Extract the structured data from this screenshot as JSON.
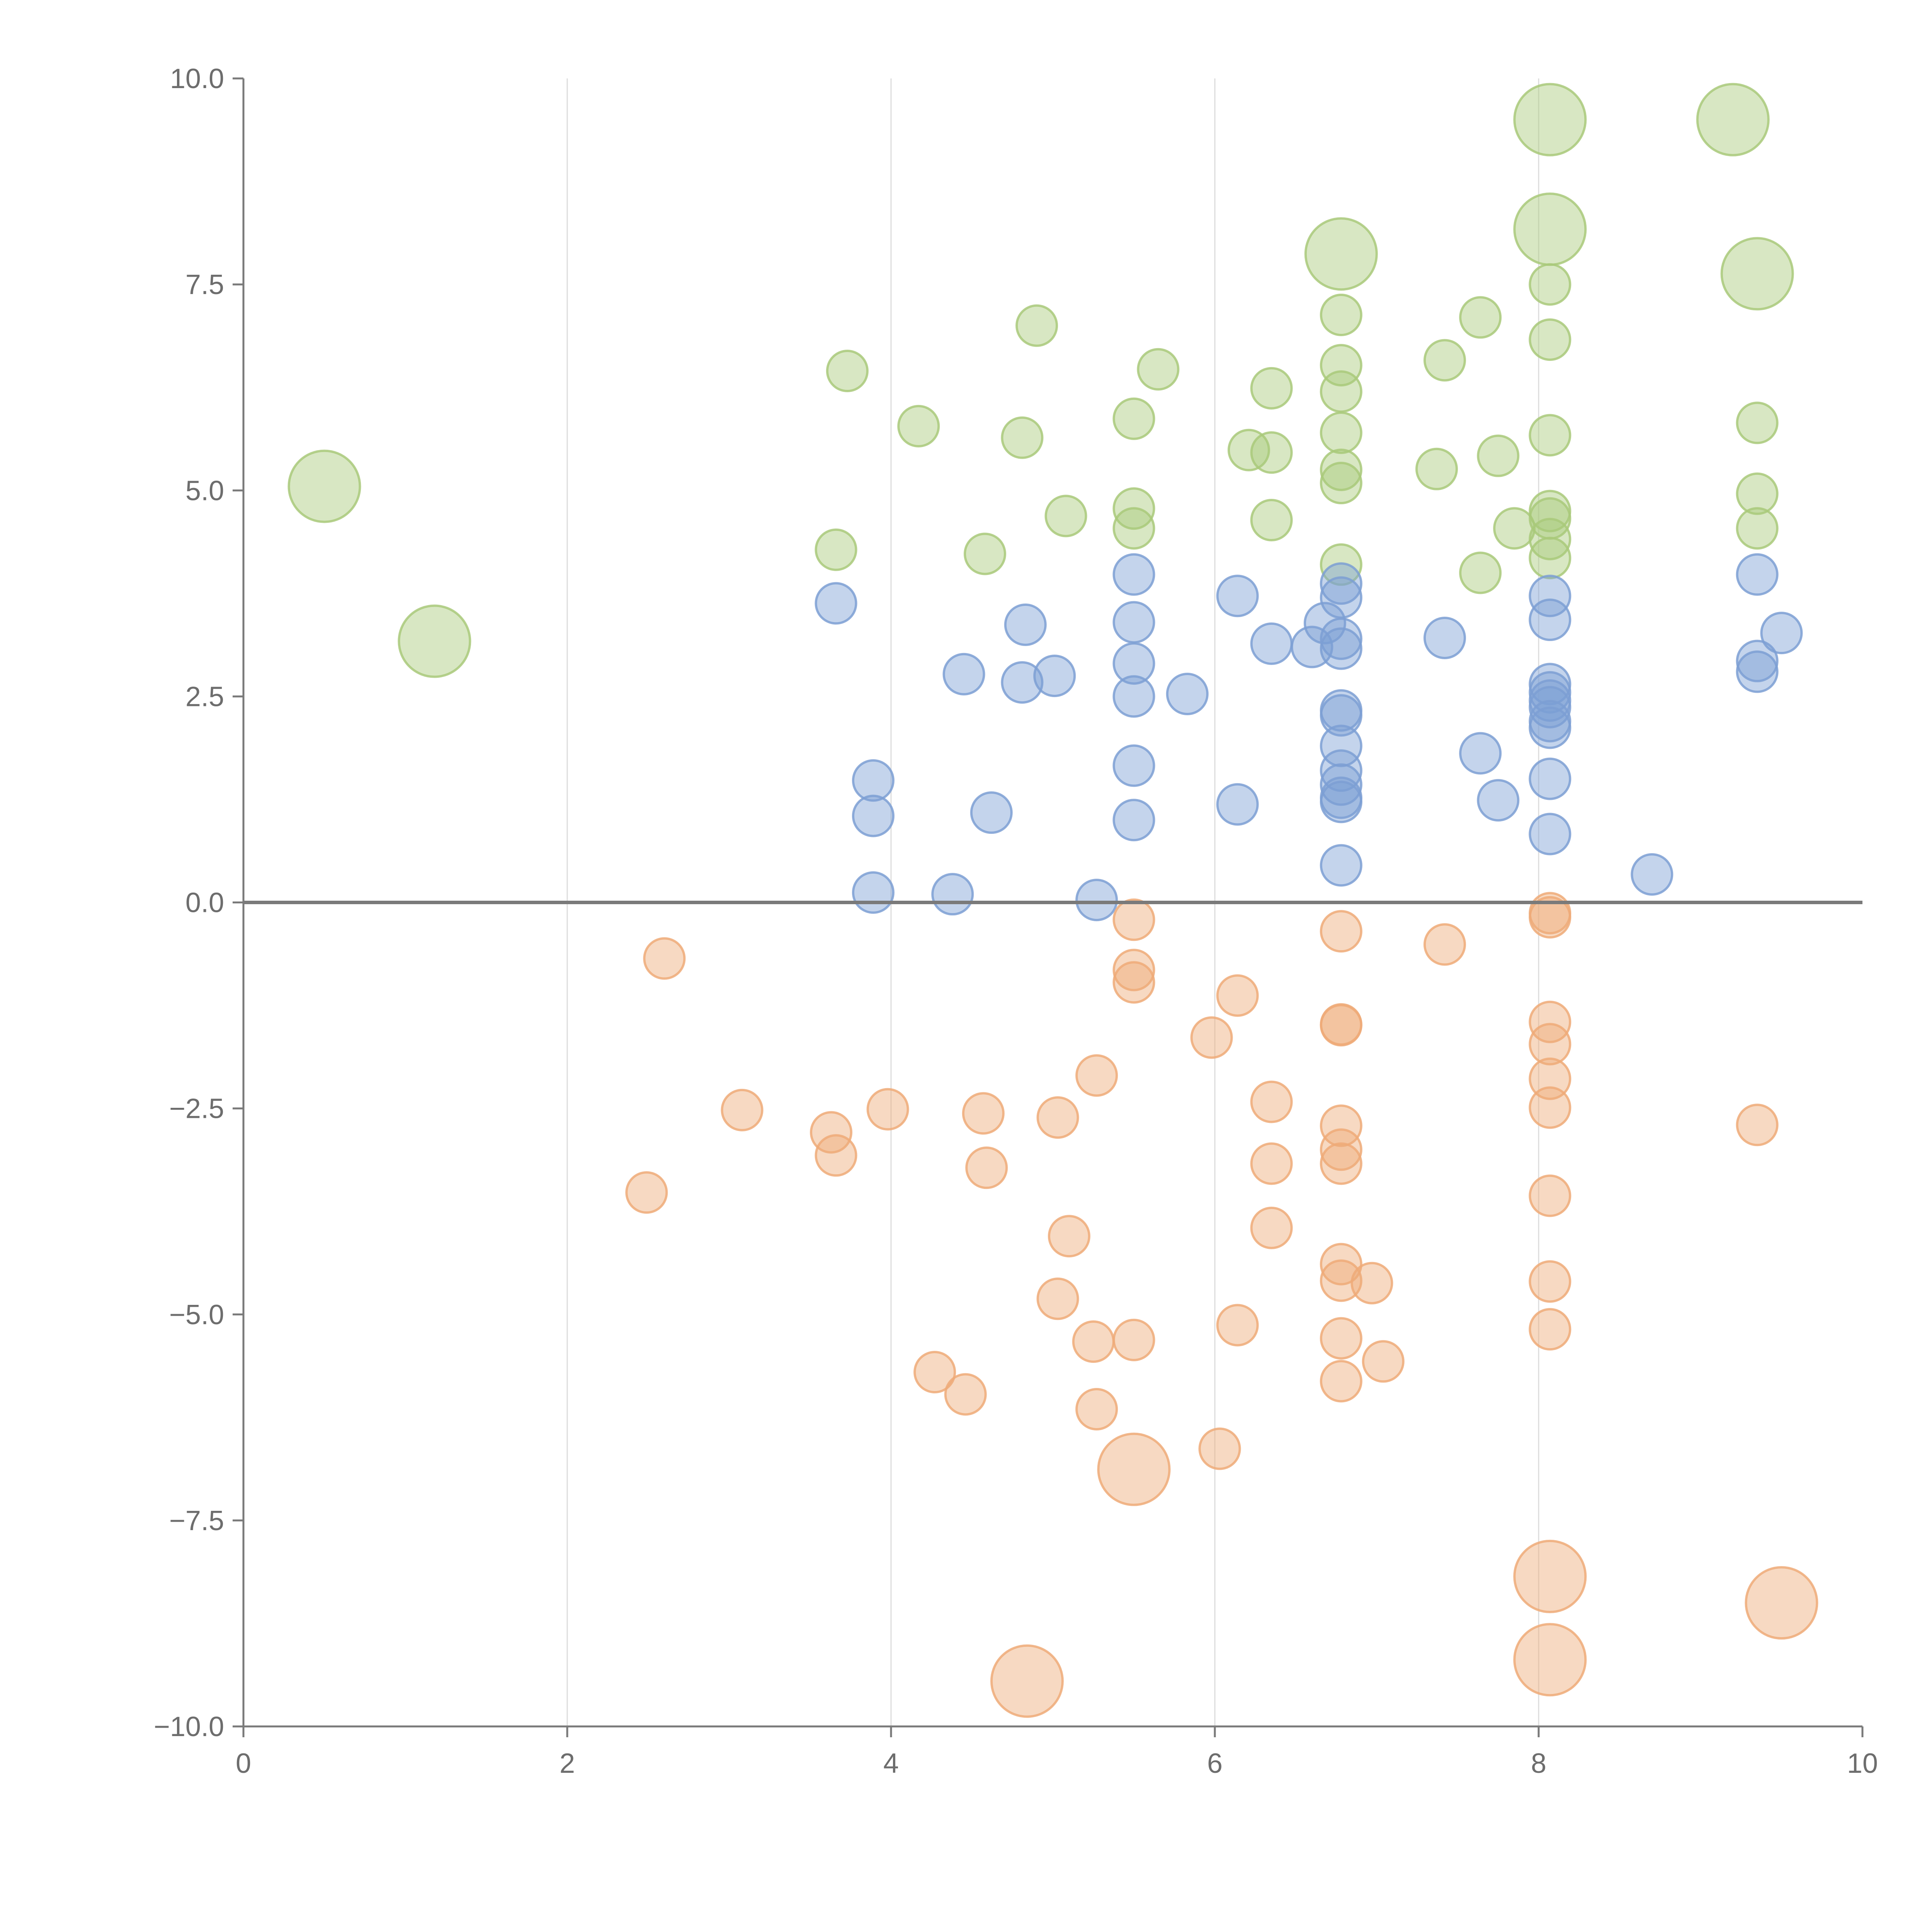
{
  "chart_data": {
    "type": "scatter",
    "title": "",
    "xlabel": "",
    "ylabel": "",
    "xlim": [
      0,
      10
    ],
    "ylim": [
      -10,
      10
    ],
    "x_ticks": [
      "0",
      "2",
      "4",
      "6",
      "8",
      "10"
    ],
    "y_ticks": [
      "10.0",
      "7.5",
      "5.0",
      "2.5",
      "0.0",
      "−2.5",
      "−5.0",
      "−7.5",
      "−10.0"
    ],
    "x_tick_values": [
      0,
      2,
      4,
      6,
      8,
      10
    ],
    "y_tick_values": [
      10,
      7.5,
      5,
      2.5,
      0,
      -2.5,
      -5,
      -7.5,
      -10
    ],
    "vertical_gridlines": [
      2,
      4,
      6,
      8
    ],
    "reference_line_y": 0,
    "legend": "none",
    "series": [
      {
        "name": "green",
        "color": "#a9c97a",
        "points": [
          [
            0.5,
            5.05,
            2
          ],
          [
            1.18,
            3.17,
            2
          ],
          [
            3.66,
            4.28,
            1
          ],
          [
            3.73,
            6.45,
            1
          ],
          [
            4.17,
            5.78,
            1
          ],
          [
            4.58,
            4.23,
            1
          ],
          [
            4.81,
            5.64,
            1
          ],
          [
            4.9,
            7.0,
            1
          ],
          [
            5.08,
            4.69,
            1
          ],
          [
            5.5,
            5.87,
            1
          ],
          [
            5.5,
            4.78,
            1
          ],
          [
            5.5,
            4.54,
            1
          ],
          [
            5.65,
            6.47,
            1
          ],
          [
            6.21,
            5.49,
            1
          ],
          [
            6.35,
            6.24,
            1
          ],
          [
            6.35,
            5.46,
            1
          ],
          [
            6.35,
            4.64,
            1
          ],
          [
            6.78,
            7.13,
            1
          ],
          [
            6.78,
            6.52,
            1
          ],
          [
            6.78,
            6.2,
            1
          ],
          [
            6.78,
            5.7,
            1
          ],
          [
            6.78,
            5.25,
            1
          ],
          [
            6.78,
            5.09,
            1
          ],
          [
            6.78,
            4.1,
            1
          ],
          [
            6.78,
            7.87,
            2
          ],
          [
            7.37,
            5.26,
            1
          ],
          [
            7.42,
            6.58,
            1
          ],
          [
            7.64,
            7.1,
            1
          ],
          [
            7.64,
            4.0,
            1
          ],
          [
            7.75,
            5.42,
            1
          ],
          [
            7.85,
            4.54,
            1
          ],
          [
            8.07,
            9.5,
            2
          ],
          [
            8.07,
            8.17,
            2
          ],
          [
            8.07,
            7.5,
            1
          ],
          [
            8.07,
            6.83,
            1
          ],
          [
            8.07,
            5.67,
            1
          ],
          [
            8.07,
            4.75,
            1
          ],
          [
            8.07,
            4.66,
            1
          ],
          [
            8.07,
            4.41,
            1
          ],
          [
            8.07,
            4.18,
            1
          ],
          [
            9.2,
            9.5,
            2
          ],
          [
            9.35,
            7.63,
            2
          ],
          [
            9.35,
            5.82,
            1
          ],
          [
            9.35,
            4.96,
            1
          ],
          [
            9.35,
            4.54,
            1
          ]
        ]
      },
      {
        "name": "blue",
        "color": "#7d9fd4",
        "points": [
          [
            3.66,
            3.63,
            1
          ],
          [
            3.89,
            1.48,
            1
          ],
          [
            3.89,
            1.05,
            1
          ],
          [
            3.89,
            0.12,
            1
          ],
          [
            4.38,
            0.1,
            1
          ],
          [
            4.45,
            2.77,
            1
          ],
          [
            4.62,
            1.09,
            1
          ],
          [
            4.81,
            2.67,
            1
          ],
          [
            4.83,
            3.37,
            1
          ],
          [
            5.01,
            2.75,
            1
          ],
          [
            5.27,
            0.03,
            1
          ],
          [
            5.5,
            3.98,
            1
          ],
          [
            5.5,
            3.4,
            1
          ],
          [
            5.5,
            2.9,
            1
          ],
          [
            5.5,
            2.5,
            1
          ],
          [
            5.5,
            1.66,
            1
          ],
          [
            5.5,
            1.0,
            1
          ],
          [
            5.83,
            2.53,
            1
          ],
          [
            6.14,
            3.72,
            1
          ],
          [
            6.14,
            1.19,
            1
          ],
          [
            6.35,
            3.14,
            1
          ],
          [
            6.6,
            3.1,
            1
          ],
          [
            6.68,
            3.39,
            1
          ],
          [
            6.78,
            3.87,
            1
          ],
          [
            6.78,
            3.7,
            1
          ],
          [
            6.78,
            3.2,
            1
          ],
          [
            6.78,
            3.08,
            1
          ],
          [
            6.78,
            2.33,
            1
          ],
          [
            6.78,
            2.27,
            1
          ],
          [
            6.78,
            1.9,
            1
          ],
          [
            6.78,
            1.6,
            1
          ],
          [
            6.78,
            1.43,
            1
          ],
          [
            6.78,
            1.27,
            1
          ],
          [
            6.78,
            1.22,
            1
          ],
          [
            6.78,
            0.45,
            1
          ],
          [
            7.42,
            3.21,
            1
          ],
          [
            7.64,
            1.81,
            1
          ],
          [
            7.75,
            1.24,
            1
          ],
          [
            8.07,
            3.72,
            1
          ],
          [
            8.07,
            3.43,
            1
          ],
          [
            8.07,
            2.65,
            1
          ],
          [
            8.07,
            2.55,
            1
          ],
          [
            8.07,
            2.45,
            1
          ],
          [
            8.07,
            2.37,
            1
          ],
          [
            8.07,
            2.2,
            1
          ],
          [
            8.07,
            2.12,
            1
          ],
          [
            8.07,
            1.5,
            1
          ],
          [
            8.07,
            0.83,
            1
          ],
          [
            8.7,
            0.34,
            1
          ],
          [
            9.35,
            3.98,
            1
          ],
          [
            9.35,
            2.93,
            1
          ],
          [
            9.35,
            2.8,
            1
          ],
          [
            9.5,
            3.27,
            1
          ]
        ]
      },
      {
        "name": "orange",
        "color": "#eeaa78",
        "points": [
          [
            2.49,
            -3.52,
            1
          ],
          [
            2.6,
            -0.68,
            1
          ],
          [
            3.08,
            -2.52,
            1
          ],
          [
            3.63,
            -2.79,
            1
          ],
          [
            3.66,
            -3.07,
            1
          ],
          [
            3.98,
            -2.51,
            1
          ],
          [
            4.27,
            -5.7,
            1
          ],
          [
            4.46,
            -5.97,
            1
          ],
          [
            4.57,
            -2.56,
            1
          ],
          [
            4.59,
            -3.22,
            1
          ],
          [
            4.84,
            -9.45,
            2
          ],
          [
            5.03,
            -2.61,
            1
          ],
          [
            5.03,
            -4.81,
            1
          ],
          [
            5.1,
            -4.05,
            1
          ],
          [
            5.25,
            -5.33,
            1
          ],
          [
            5.27,
            -2.1,
            1
          ],
          [
            5.27,
            -6.15,
            1
          ],
          [
            5.5,
            -0.21,
            1
          ],
          [
            5.5,
            -0.82,
            1
          ],
          [
            5.5,
            -0.97,
            1
          ],
          [
            5.5,
            -5.31,
            1
          ],
          [
            5.5,
            -6.88,
            2
          ],
          [
            5.98,
            -1.64,
            1
          ],
          [
            6.03,
            -6.63,
            1
          ],
          [
            6.14,
            -1.13,
            1
          ],
          [
            6.14,
            -5.13,
            1
          ],
          [
            6.35,
            -2.42,
            1
          ],
          [
            6.35,
            -3.17,
            1
          ],
          [
            6.35,
            -3.95,
            1
          ],
          [
            6.78,
            -0.35,
            1
          ],
          [
            6.78,
            -1.48,
            1
          ],
          [
            6.78,
            -1.49,
            1
          ],
          [
            6.78,
            -2.71,
            1
          ],
          [
            6.78,
            -3.0,
            1
          ],
          [
            6.78,
            -3.17,
            1
          ],
          [
            6.78,
            -4.39,
            1
          ],
          [
            6.78,
            -4.59,
            1
          ],
          [
            6.78,
            -5.29,
            1
          ],
          [
            6.78,
            -5.81,
            1
          ],
          [
            6.97,
            -4.62,
            1
          ],
          [
            7.04,
            -5.57,
            1
          ],
          [
            7.42,
            -0.51,
            1
          ],
          [
            8.07,
            -0.13,
            1
          ],
          [
            8.07,
            -0.18,
            1
          ],
          [
            8.07,
            -1.45,
            1
          ],
          [
            8.07,
            -1.72,
            1
          ],
          [
            8.07,
            -2.14,
            1
          ],
          [
            8.07,
            -2.49,
            1
          ],
          [
            8.07,
            -3.56,
            1
          ],
          [
            8.07,
            -4.6,
            1
          ],
          [
            8.07,
            -5.18,
            1
          ],
          [
            8.07,
            -8.18,
            2
          ],
          [
            8.07,
            -9.19,
            2
          ],
          [
            9.35,
            -2.7,
            1
          ],
          [
            9.5,
            -8.5,
            2
          ]
        ]
      }
    ]
  }
}
